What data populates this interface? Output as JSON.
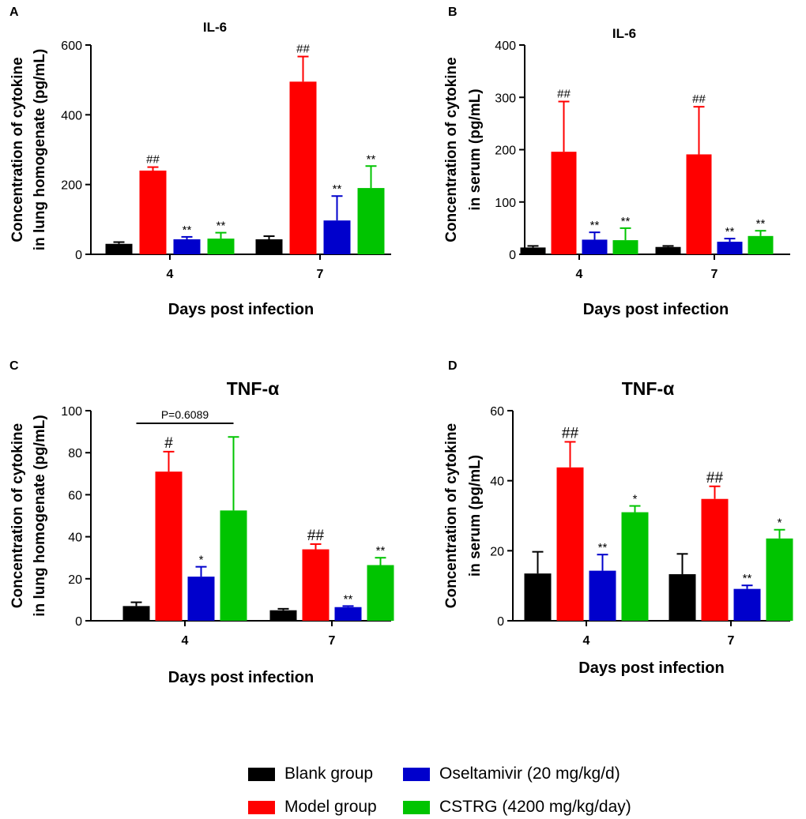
{
  "figure": {
    "xlabel": "Days post infection",
    "categories": [
      "4",
      "7"
    ],
    "groups": [
      {
        "name": "Blank group",
        "color": "#000000"
      },
      {
        "name": "Model group",
        "color": "#FF0000"
      },
      {
        "name": "Oseltamivir (20 mg/kg/d)",
        "color": "#0000CC"
      },
      {
        "name": "CSTRG (4200 mg/kg/day)",
        "color": "#00C400"
      }
    ]
  },
  "chart_data": [
    {
      "panel": "A",
      "title": "IL-6",
      "type": "bar",
      "ylabel_lines": [
        "Concentration of cytokine",
        "in lung homogenate (pg/mL)"
      ],
      "xlabel": "Days post infection",
      "categories": [
        "4",
        "7"
      ],
      "ylim": [
        0,
        600
      ],
      "yticks": [
        0,
        200,
        400,
        600
      ],
      "series": [
        {
          "name": "Blank group",
          "values": [
            30,
            43
          ],
          "errors": [
            5,
            9
          ],
          "marks": [
            "",
            ""
          ]
        },
        {
          "name": "Model group",
          "values": [
            240,
            495
          ],
          "errors": [
            10,
            72
          ],
          "marks": [
            "##",
            "##"
          ]
        },
        {
          "name": "Oseltamivir (20 mg/kg/d)",
          "values": [
            43,
            97
          ],
          "errors": [
            7,
            70
          ],
          "marks": [
            "**",
            "**"
          ]
        },
        {
          "name": "CSTRG (4200 mg/kg/day)",
          "values": [
            45,
            190
          ],
          "errors": [
            17,
            63
          ],
          "marks": [
            "**",
            "**"
          ]
        }
      ]
    },
    {
      "panel": "B",
      "title": "IL-6",
      "type": "bar",
      "ylabel_lines": [
        "Concentration of cytokine",
        "in serum (pg/mL)"
      ],
      "xlabel": "Days post infection",
      "categories": [
        "4",
        "7"
      ],
      "ylim": [
        0,
        400
      ],
      "yticks": [
        0,
        100,
        200,
        300,
        400
      ],
      "series": [
        {
          "name": "Blank group",
          "values": [
            13,
            14
          ],
          "errors": [
            3,
            2
          ],
          "marks": [
            "",
            ""
          ]
        },
        {
          "name": "Model group",
          "values": [
            196,
            191
          ],
          "errors": [
            96,
            91
          ],
          "marks": [
            "##",
            "##"
          ]
        },
        {
          "name": "Oseltamivir (20 mg/kg/d)",
          "values": [
            28,
            24
          ],
          "errors": [
            14,
            6
          ],
          "marks": [
            "**",
            "**"
          ]
        },
        {
          "name": "CSTRG (4200 mg/kg/day)",
          "values": [
            27,
            35
          ],
          "errors": [
            23,
            10
          ],
          "marks": [
            "**",
            "**"
          ]
        }
      ]
    },
    {
      "panel": "C",
      "title": "TNF-α",
      "type": "bar",
      "ylabel_lines": [
        "Concentration of cytokine",
        "in lung homogenate (pg/mL)"
      ],
      "xlabel": "Days post infection",
      "categories": [
        "4",
        "7"
      ],
      "ylim": [
        0,
        100
      ],
      "yticks": [
        0,
        20,
        40,
        60,
        80,
        100
      ],
      "bracket": {
        "label": "P=0.6089",
        "from_group": 0,
        "to_group": 3,
        "category": 0,
        "y_value": 94
      },
      "series": [
        {
          "name": "Blank group",
          "values": [
            7,
            5
          ],
          "errors": [
            1.8,
            0.7
          ],
          "marks": [
            "",
            ""
          ]
        },
        {
          "name": "Model group",
          "values": [
            71,
            34
          ],
          "errors": [
            9.5,
            2.5
          ],
          "marks": [
            "#",
            "##"
          ]
        },
        {
          "name": "Oseltamivir (20 mg/kg/d)",
          "values": [
            21,
            6.5
          ],
          "errors": [
            4.7,
            0.5
          ],
          "marks": [
            "*",
            "**"
          ]
        },
        {
          "name": "CSTRG (4200 mg/kg/day)",
          "values": [
            52.5,
            26.5
          ],
          "errors": [
            35,
            3.5
          ],
          "marks": [
            "",
            "**"
          ]
        }
      ]
    },
    {
      "panel": "D",
      "title": "TNF-α",
      "type": "bar",
      "ylabel_lines": [
        "Concentration of cytokine",
        "in serum (pg/mL)"
      ],
      "xlabel": "Days post infection",
      "categories": [
        "4",
        "7"
      ],
      "ylim": [
        0,
        60
      ],
      "yticks": [
        0,
        20,
        40,
        60
      ],
      "series": [
        {
          "name": "Blank group",
          "values": [
            13.5,
            13.3
          ],
          "errors": [
            6.2,
            5.8
          ],
          "marks": [
            "",
            ""
          ]
        },
        {
          "name": "Model group",
          "values": [
            43.8,
            34.8
          ],
          "errors": [
            7.3,
            3.6
          ],
          "marks": [
            "##",
            "##"
          ]
        },
        {
          "name": "Oseltamivir (20 mg/kg/d)",
          "values": [
            14.3,
            9.1
          ],
          "errors": [
            4.6,
            1.0
          ],
          "marks": [
            "**",
            "**"
          ]
        },
        {
          "name": "CSTRG (4200 mg/kg/day)",
          "values": [
            31,
            23.5
          ],
          "errors": [
            1.8,
            2.5
          ],
          "marks": [
            "*",
            "*"
          ]
        }
      ]
    }
  ]
}
